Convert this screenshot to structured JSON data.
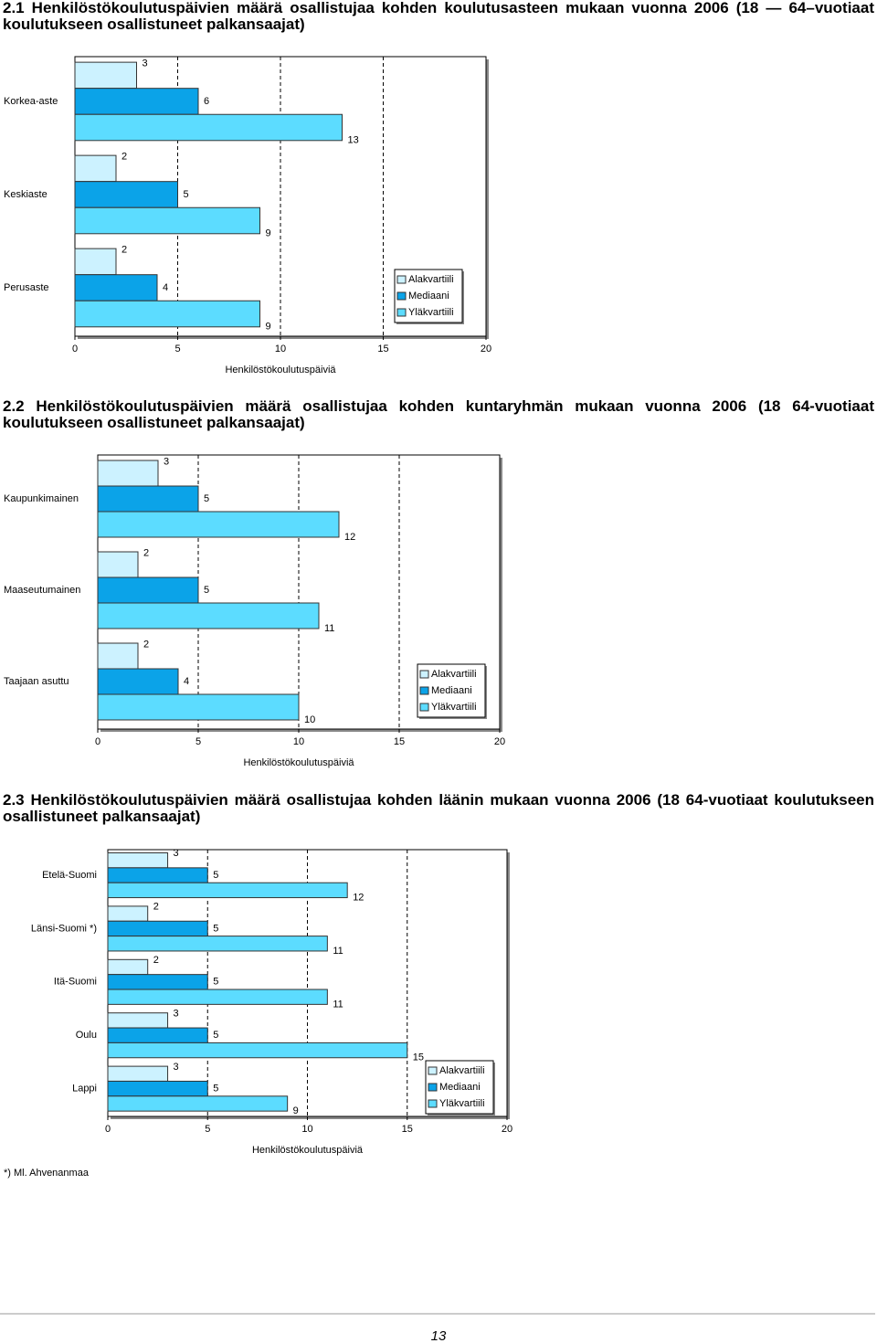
{
  "chart_data": [
    {
      "type": "bar",
      "orientation": "horizontal",
      "title": "2.1 Henkilöstökoulutuspäivien määrä osallistujaa kohden koulutusasteen mukaan vuonna 2006 (18 — 64–vuotiaat koulutukseen osallistuneet palkansaajat)",
      "x_label": "Henkilöstökoulutuspäiviä",
      "categories": [
        "Korkea-aste",
        "Keskiaste",
        "Perusaste"
      ],
      "series": [
        {
          "name": "Alakvartiili",
          "color": "#ccf2ff",
          "values": [
            3,
            2,
            2
          ]
        },
        {
          "name": "Mediaani",
          "color": "#0ba3e8",
          "values": [
            6,
            5,
            4
          ]
        },
        {
          "name": "Yläkvartiili",
          "color": "#5cdcff",
          "values": [
            13,
            9,
            9
          ]
        }
      ],
      "xlim": [
        0,
        20
      ],
      "xticks": [
        0,
        5,
        10,
        15,
        20
      ],
      "grid": true,
      "legend": "lower right"
    },
    {
      "type": "bar",
      "orientation": "horizontal",
      "title": "2.2 Henkilöstökoulutuspäivien määrä osallistujaa kohden kuntaryhmän mukaan vuonna 2006 (18 64-vuotiaat koulutukseen osallistuneet palkansaajat)",
      "x_label": "Henkilöstökoulutuspäiviä",
      "categories": [
        "Kaupunkimainen",
        "Maaseutumainen",
        "Taajaan asuttu"
      ],
      "series": [
        {
          "name": "Alakvartiili",
          "color": "#ccf2ff",
          "values": [
            3,
            2,
            2
          ]
        },
        {
          "name": "Mediaani",
          "color": "#0ba3e8",
          "values": [
            5,
            5,
            4
          ]
        },
        {
          "name": "Yläkvartiili",
          "color": "#5cdcff",
          "values": [
            12,
            11,
            10
          ]
        }
      ],
      "xlim": [
        0,
        20
      ],
      "xticks": [
        0,
        5,
        10,
        15,
        20
      ],
      "grid": true,
      "legend": "lower right"
    },
    {
      "type": "bar",
      "orientation": "horizontal",
      "title": "2.3 Henkilöstökoulutuspäivien määrä osallistujaa kohden läänin mukaan vuonna 2006 (18 64-vuotiaat koulutukseen osallistuneet palkansaajat)",
      "x_label": "Henkilöstökoulutuspäiviä",
      "categories": [
        "Etelä-Suomi",
        "Länsi-Suomi *)",
        "Itä-Suomi",
        "Oulu",
        "Lappi"
      ],
      "series": [
        {
          "name": "Alakvartiili",
          "color": "#ccf2ff",
          "values": [
            3,
            2,
            2,
            3,
            3
          ]
        },
        {
          "name": "Mediaani",
          "color": "#0ba3e8",
          "values": [
            5,
            5,
            5,
            5,
            5
          ]
        },
        {
          "name": "Yläkvartiili",
          "color": "#5cdcff",
          "values": [
            12,
            11,
            11,
            15,
            9
          ]
        }
      ],
      "xlim": [
        0,
        20
      ],
      "xticks": [
        0,
        5,
        10,
        15,
        20
      ],
      "grid": true,
      "legend": "lower right"
    }
  ],
  "footnote": "*) Ml. Ahvenanmaa",
  "page_number": "13"
}
